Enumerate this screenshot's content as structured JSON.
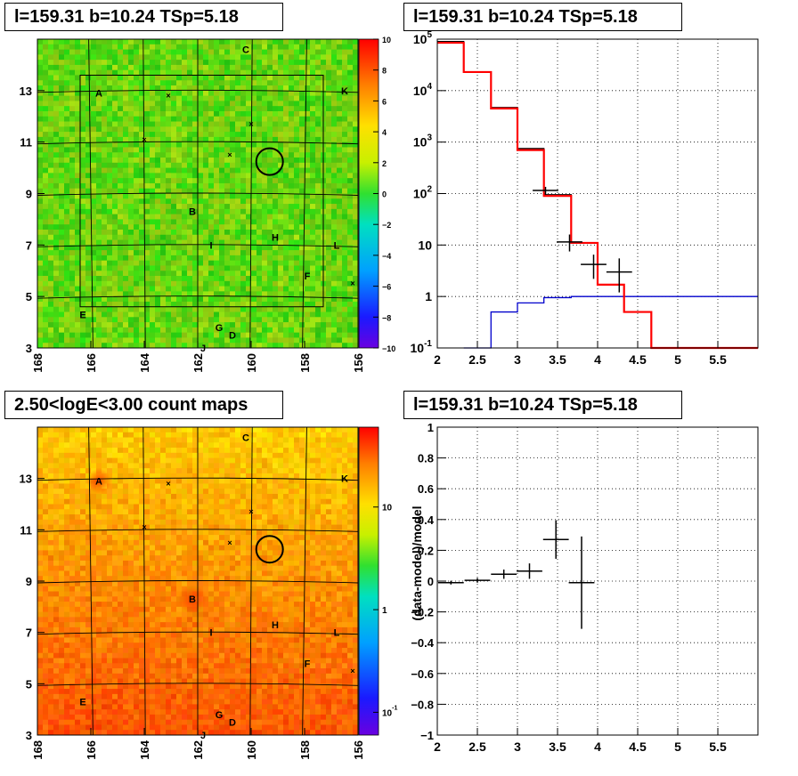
{
  "panels": {
    "tl_title": "l=159.31 b=10.24 TSp=5.18",
    "tr_title": "l=159.31 b=10.24 TSp=5.18",
    "bl_title": "2.50<logE<3.00 count maps",
    "br_title": "l=159.31 b=10.24 TSp=5.18"
  },
  "chart_data": [
    {
      "type": "heatmap",
      "name": "residual-map",
      "title": "l=159.31 b=10.24 TSp=5.18",
      "xlim": [
        168,
        156
      ],
      "ylim": [
        3,
        15
      ],
      "xticks": [
        "168",
        "166",
        "164",
        "162",
        "160",
        "158",
        "156"
      ],
      "yticks": [
        "3",
        "5",
        "7",
        "9",
        "11",
        "13"
      ],
      "colorbar": {
        "min": -10,
        "max": 10,
        "ticks": [
          "10",
          "8",
          "6",
          "4",
          "2",
          "0",
          "−2",
          "−4",
          "−6",
          "−8",
          "−10"
        ]
      },
      "sources": [
        {
          "label": "A",
          "l": 165.7,
          "b": 12.9
        },
        {
          "label": "B",
          "l": 162.2,
          "b": 8.3
        },
        {
          "label": "C",
          "l": 160.2,
          "b": 14.6
        },
        {
          "label": "D",
          "l": 160.7,
          "b": 3.5
        },
        {
          "label": "E",
          "l": 166.3,
          "b": 4.3
        },
        {
          "label": "F",
          "l": 157.9,
          "b": 5.8
        },
        {
          "label": "G",
          "l": 161.2,
          "b": 3.8
        },
        {
          "label": "H",
          "l": 159.1,
          "b": 7.3
        },
        {
          "label": "I",
          "l": 161.5,
          "b": 7.0
        },
        {
          "label": "J",
          "l": 161.8,
          "b": 3.0
        },
        {
          "label": "K",
          "l": 156.5,
          "b": 13.0
        },
        {
          "label": "L",
          "l": 156.8,
          "b": 7.0
        }
      ],
      "markers": [
        {
          "l": 163.1,
          "b": 12.8
        },
        {
          "l": 164.0,
          "b": 11.1
        },
        {
          "l": 160.8,
          "b": 10.5
        },
        {
          "l": 160.0,
          "b": 11.7
        },
        {
          "l": 156.2,
          "b": 5.5
        }
      ],
      "circle": {
        "l": 159.31,
        "b": 10.24,
        "r": 0.5
      }
    },
    {
      "type": "line",
      "name": "spectrum",
      "title": "l=159.31 b=10.24 TSp=5.18",
      "xlim": [
        2,
        6
      ],
      "ylim": [
        0.1,
        100000
      ],
      "yscale": "log",
      "xticks": [
        "2",
        "2.5",
        "3",
        "3.5",
        "4",
        "4.5",
        "5",
        "5.5"
      ],
      "yticks": [
        {
          "v": 100000,
          "t": "10^5"
        },
        {
          "v": 10000,
          "t": "10^4"
        },
        {
          "v": 1000,
          "t": "10^3"
        },
        {
          "v": 100,
          "t": "10^2"
        },
        {
          "v": 10,
          "t": "10"
        },
        {
          "v": 1,
          "t": "1"
        },
        {
          "v": 0.1,
          "t": "10^-1"
        }
      ],
      "grid": true,
      "series": [
        {
          "color": "#ff0000",
          "steps": [
            [
              2.0,
              2.33,
              85000
            ],
            [
              2.33,
              2.67,
              23000
            ],
            [
              2.67,
              3.0,
              4500
            ],
            [
              3.0,
              3.33,
              700
            ],
            [
              3.33,
              3.67,
              90
            ],
            [
              3.67,
              4.0,
              11
            ],
            [
              4.0,
              4.33,
              1.7
            ],
            [
              4.33,
              4.67,
              0.5
            ],
            [
              4.67,
              6.0,
              0.1
            ]
          ]
        },
        {
          "color": "#000000",
          "steps": [
            [
              2.0,
              2.33,
              90000
            ],
            [
              2.33,
              2.67,
              23000
            ],
            [
              2.67,
              3.0,
              4700
            ],
            [
              3.0,
              3.33,
              750
            ],
            [
              3.33,
              3.67,
              95
            ],
            [
              3.67,
              4.0,
              11
            ]
          ]
        },
        {
          "color": "#0000cc",
          "steps": [
            [
              2.33,
              2.67,
              0.1
            ],
            [
              2.67,
              3.0,
              0.5
            ],
            [
              3.0,
              3.33,
              0.75
            ],
            [
              3.33,
              3.67,
              0.95
            ],
            [
              3.67,
              6.0,
              1.0
            ]
          ]
        }
      ],
      "points": [
        {
          "x": 3.35,
          "y": 115,
          "xerr": 0.16,
          "ylo": 95,
          "yhi": 135
        },
        {
          "x": 3.65,
          "y": 11.5,
          "xerr": 0.16,
          "ylo": 7.5,
          "yhi": 16
        },
        {
          "x": 3.95,
          "y": 4.2,
          "xerr": 0.16,
          "ylo": 2.2,
          "yhi": 6.5
        },
        {
          "x": 4.27,
          "y": 3.0,
          "xerr": 0.16,
          "ylo": 1.2,
          "yhi": 5.5
        }
      ]
    },
    {
      "type": "heatmap",
      "name": "count-map",
      "title": "2.50<logE<3.00 count maps",
      "xlim": [
        168,
        156
      ],
      "ylim": [
        3,
        15
      ],
      "xticks": [
        "168",
        "166",
        "164",
        "162",
        "160",
        "158",
        "156"
      ],
      "yticks": [
        "3",
        "5",
        "7",
        "9",
        "11",
        "13"
      ],
      "colorbar": {
        "scale": "log",
        "ticks": [
          "10",
          "1",
          "10^-1"
        ]
      },
      "sources": [
        {
          "label": "A",
          "l": 165.7,
          "b": 12.9
        },
        {
          "label": "B",
          "l": 162.2,
          "b": 8.3
        },
        {
          "label": "C",
          "l": 160.2,
          "b": 14.6
        },
        {
          "label": "D",
          "l": 160.7,
          "b": 3.5
        },
        {
          "label": "E",
          "l": 166.3,
          "b": 4.3
        },
        {
          "label": "F",
          "l": 157.9,
          "b": 5.8
        },
        {
          "label": "G",
          "l": 161.2,
          "b": 3.8
        },
        {
          "label": "H",
          "l": 159.1,
          "b": 7.3
        },
        {
          "label": "I",
          "l": 161.5,
          "b": 7.0
        },
        {
          "label": "J",
          "l": 161.8,
          "b": 3.0
        },
        {
          "label": "K",
          "l": 156.5,
          "b": 13.0
        },
        {
          "label": "L",
          "l": 156.8,
          "b": 7.0
        }
      ],
      "markers": [
        {
          "l": 163.1,
          "b": 12.8
        },
        {
          "l": 164.0,
          "b": 11.1
        },
        {
          "l": 160.8,
          "b": 10.5
        },
        {
          "l": 160.0,
          "b": 11.7
        },
        {
          "l": 156.2,
          "b": 5.5
        }
      ],
      "circle": {
        "l": 159.31,
        "b": 10.24,
        "r": 0.5
      }
    },
    {
      "type": "scatter",
      "name": "residual-ratio",
      "title": "l=159.31 b=10.24 TSp=5.18",
      "ylabel": "(data-model)/model",
      "xlim": [
        2,
        6
      ],
      "ylim": [
        -1,
        1
      ],
      "xticks": [
        "2",
        "2.5",
        "3",
        "3.5",
        "4",
        "4.5",
        "5",
        "5.5"
      ],
      "yticks": [
        "1",
        "0.8",
        "0.6",
        "0.4",
        "0.2",
        "0",
        "−0.2",
        "−0.4",
        "−0.6",
        "−0.8",
        "−1"
      ],
      "grid": true,
      "points": [
        {
          "x": 2.17,
          "y": -0.01,
          "xerr": 0.16,
          "yerr": 0.012
        },
        {
          "x": 2.5,
          "y": 0.005,
          "xerr": 0.16,
          "yerr": 0.015
        },
        {
          "x": 2.83,
          "y": 0.045,
          "xerr": 0.16,
          "yerr": 0.03
        },
        {
          "x": 3.15,
          "y": 0.065,
          "xerr": 0.16,
          "yerr": 0.05
        },
        {
          "x": 3.48,
          "y": 0.27,
          "xerr": 0.16,
          "yerr": 0.125
        },
        {
          "x": 3.8,
          "y": -0.01,
          "xerr": 0.16,
          "yerr": 0.3
        }
      ]
    }
  ]
}
